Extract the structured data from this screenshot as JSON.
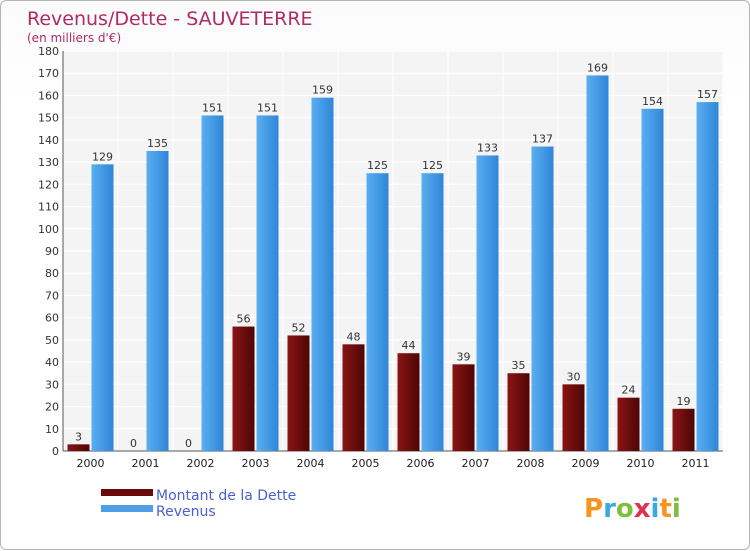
{
  "chart_data": {
    "type": "bar",
    "title": "Revenus/Dette - SAUVETERRE",
    "subtitle": "(en milliers d'€)",
    "categories": [
      "2000",
      "2001",
      "2002",
      "2003",
      "2004",
      "2005",
      "2006",
      "2007",
      "2008",
      "2009",
      "2010",
      "2011"
    ],
    "series": [
      {
        "name": "Montant de la Dette",
        "values": [
          3,
          0,
          0,
          56,
          52,
          48,
          44,
          39,
          35,
          30,
          24,
          19
        ],
        "color": "#7a0b0b"
      },
      {
        "name": "Revenus",
        "values": [
          129,
          135,
          151,
          151,
          159,
          125,
          125,
          133,
          137,
          169,
          154,
          157
        ],
        "color": "#4f9fe6"
      }
    ],
    "ylim": [
      0,
      180
    ],
    "ytick_step": 10,
    "grid": true,
    "legend": "bottom-left"
  },
  "logo": {
    "text": "Proxiti",
    "colors": [
      "#f7941d",
      "#3aa9e0",
      "#7fbf3f",
      "#e2314f",
      "#3aa9e0",
      "#f7941d",
      "#7fbf3f"
    ]
  }
}
